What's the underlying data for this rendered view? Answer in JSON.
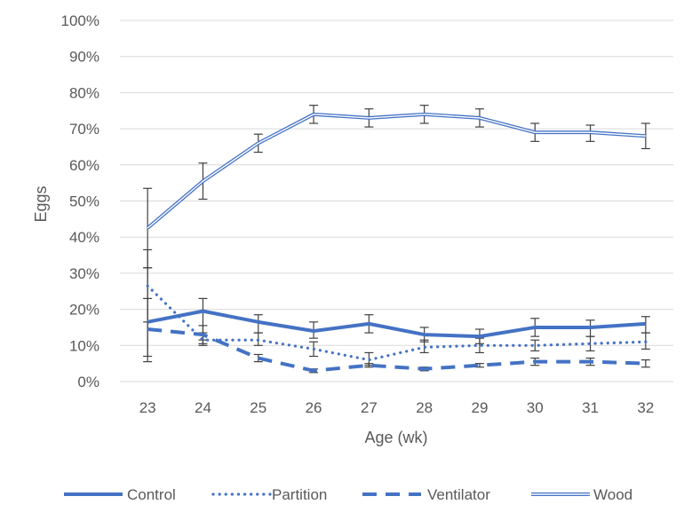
{
  "chart_data": {
    "type": "line",
    "title": "",
    "xlabel": "Age (wk)",
    "ylabel": "Eggs",
    "x": [
      23,
      24,
      25,
      26,
      27,
      28,
      29,
      30,
      31,
      32
    ],
    "xtick_labels": [
      "23",
      "24",
      "25",
      "26",
      "27",
      "28",
      "29",
      "30",
      "31",
      "32"
    ],
    "ylim": [
      0,
      100
    ],
    "ytick_labels": [
      "0%",
      "10%",
      "20%",
      "30%",
      "40%",
      "50%",
      "60%",
      "70%",
      "80%",
      "90%",
      "100%"
    ],
    "grid": "horizontal",
    "legend_position": "bottom",
    "series": [
      {
        "name": "Control",
        "style": "solid",
        "color": "#4472C4",
        "values": [
          16.5,
          19.5,
          16.5,
          14.0,
          16.0,
          13.0,
          12.5,
          15.0,
          15.0,
          16.0
        ],
        "err_low": [
          5.5,
          10.5,
          13.5,
          12.0,
          13.5,
          11.0,
          10.5,
          12.5,
          12.5,
          13.5
        ],
        "err_high": [
          31.5,
          23.0,
          18.5,
          16.5,
          18.5,
          15.0,
          14.5,
          17.5,
          17.0,
          18.0
        ]
      },
      {
        "name": "Partition",
        "style": "dotted",
        "color": "#4472C4",
        "values": [
          26.5,
          11.5,
          11.5,
          9.0,
          6.0,
          9.5,
          10.0,
          10.0,
          10.5,
          11.0
        ],
        "err_low": [
          16.5,
          10.0,
          10.0,
          7.0,
          4.5,
          8.0,
          8.0,
          8.5,
          8.5,
          9.0
        ],
        "err_high": [
          36.5,
          13.5,
          13.5,
          11.0,
          8.0,
          11.5,
          12.0,
          11.5,
          12.5,
          13.5
        ]
      },
      {
        "name": "Ventilator",
        "style": "dashed",
        "color": "#4472C4",
        "values": [
          14.5,
          13.0,
          6.5,
          3.0,
          4.5,
          3.5,
          4.5,
          5.5,
          5.5,
          5.0
        ],
        "err_low": [
          7.0,
          11.5,
          5.5,
          2.5,
          4.0,
          3.0,
          4.0,
          4.5,
          4.5,
          4.0
        ],
        "err_high": [
          23.0,
          15.5,
          7.5,
          3.5,
          5.0,
          4.0,
          5.0,
          6.5,
          6.5,
          6.0
        ]
      },
      {
        "name": "Wood",
        "style": "double",
        "color": "#4472C4",
        "values": [
          42.5,
          55.5,
          66.0,
          74.0,
          73.0,
          74.0,
          73.0,
          69.0,
          69.0,
          68.0
        ],
        "err_low": [
          31.5,
          50.5,
          63.5,
          71.5,
          70.5,
          71.5,
          70.5,
          66.5,
          66.5,
          64.5
        ],
        "err_high": [
          53.5,
          60.5,
          68.5,
          76.5,
          75.5,
          76.5,
          75.5,
          71.5,
          71.0,
          71.5
        ]
      }
    ]
  }
}
